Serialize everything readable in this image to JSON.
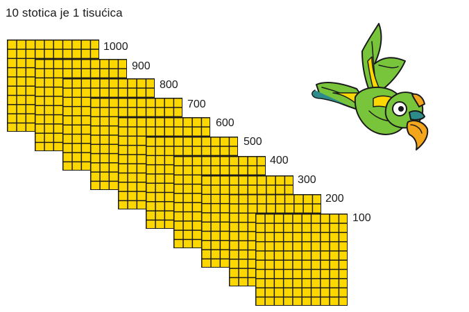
{
  "title": "10 stotica je 1 tisućica",
  "labels": [
    "1000",
    "900",
    "800",
    "700",
    "600",
    "500",
    "400",
    "300",
    "200",
    "100"
  ],
  "block_color": "#fdd800",
  "grid_color": "#1a1a1a",
  "illustration": "parrot-icon"
}
